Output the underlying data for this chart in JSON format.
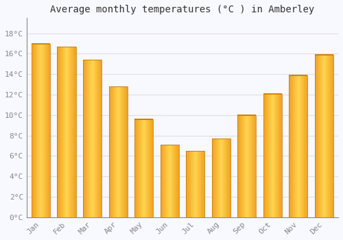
{
  "title": "Average monthly temperatures (°C ) in Amberley",
  "months": [
    "Jan",
    "Feb",
    "Mar",
    "Apr",
    "May",
    "Jun",
    "Jul",
    "Aug",
    "Sep",
    "Oct",
    "Nov",
    "Dec"
  ],
  "values": [
    17.0,
    16.7,
    15.4,
    12.8,
    9.6,
    7.1,
    6.5,
    7.7,
    10.0,
    12.1,
    13.9,
    15.9
  ],
  "bar_color_light": "#FFD060",
  "bar_color_dark": "#F0A020",
  "bar_edge_color": "#C87010",
  "background_color": "#F8F8FF",
  "grid_color": "#E0E0E0",
  "title_fontsize": 10,
  "tick_fontsize": 8,
  "ytick_labels": [
    "0°C",
    "2°C",
    "4°C",
    "6°C",
    "8°C",
    "10°C",
    "12°C",
    "14°C",
    "16°C",
    "18°C"
  ],
  "ytick_values": [
    0,
    2,
    4,
    6,
    8,
    10,
    12,
    14,
    16,
    18
  ],
  "ylim": [
    0,
    19.5
  ],
  "ylabel_color": "#888888",
  "xlabel_color": "#888888"
}
